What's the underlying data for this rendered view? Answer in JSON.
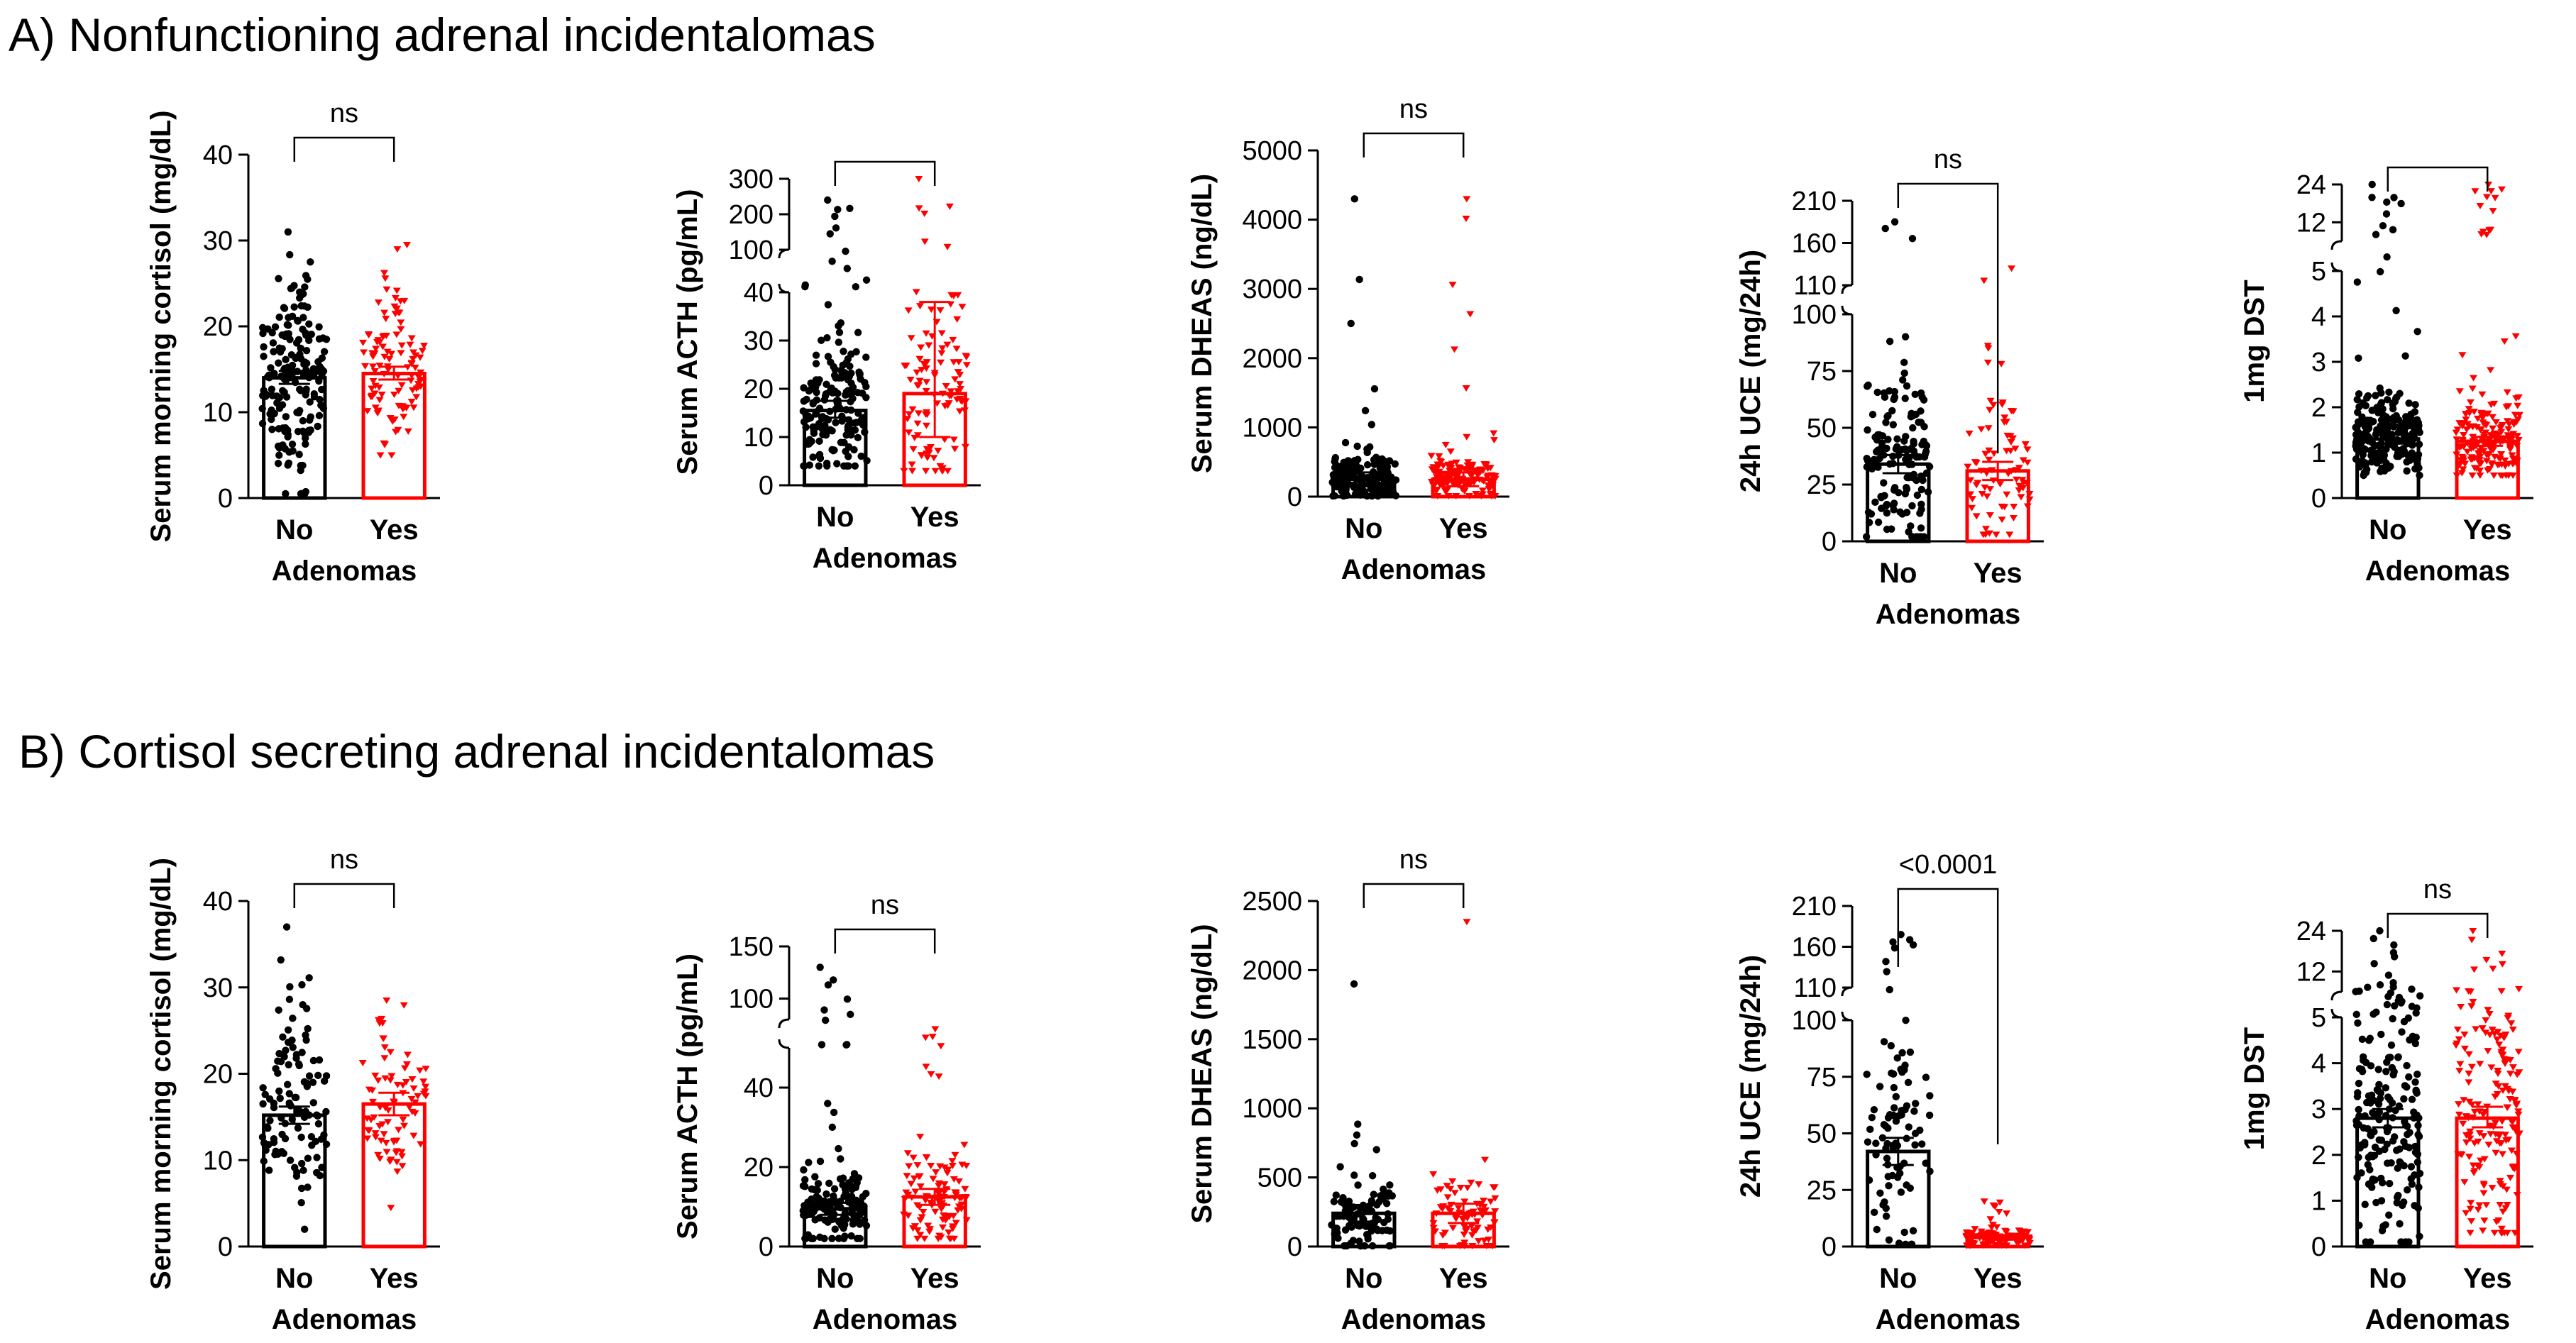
{
  "sections": [
    {
      "label": "A) Nonfunctioning adrenal incidentalomas"
    },
    {
      "label": "B) Cortisol secreting adrenal incidentalomas"
    }
  ],
  "colors": {
    "no": "#000000",
    "yes": "#ff0000"
  },
  "chart_data": [
    {
      "id": "A1",
      "type": "bar",
      "title": "",
      "xlabel": "Adenomas",
      "ylabel": "Serum morning cortisol (mg/dL)",
      "categories": [
        "No",
        "Yes"
      ],
      "means": [
        14,
        14.5
      ],
      "error_bars": [
        [
          13.3,
          14.8
        ],
        [
          13.8,
          15.3
        ]
      ],
      "point_range": [
        [
          0.5,
          31
        ],
        [
          5,
          29.5
        ]
      ],
      "n_points": [
        190,
        110
      ],
      "ylim": [
        0,
        40
      ],
      "ticks": [
        0,
        10,
        20,
        30,
        40
      ],
      "significance": "ns"
    },
    {
      "id": "A2",
      "type": "bar",
      "title": "",
      "xlabel": "Adenomas",
      "ylabel": "Serum ACTH (pg/mL)",
      "categories": [
        "No",
        "Yes"
      ],
      "means": [
        15.5,
        19
      ],
      "error_bars": [
        [
          14,
          17.5
        ],
        [
          10,
          38
        ]
      ],
      "point_range": [
        [
          4,
          240
        ],
        [
          3,
          300
        ]
      ],
      "n_points": [
        180,
        110
      ],
      "ylim_lower": [
        0,
        40
      ],
      "ticks_lower": [
        0,
        10,
        20,
        30,
        40
      ],
      "ylim_upper": [
        100,
        300
      ],
      "ticks_upper": [
        100,
        200,
        300
      ],
      "significance": ""
    },
    {
      "id": "A3",
      "type": "bar",
      "title": "",
      "xlabel": "Adenomas",
      "ylabel": "Serum DHEAS (ng/dL)",
      "categories": [
        "No",
        "Yes"
      ],
      "means": [
        250,
        250
      ],
      "error_bars": [
        [
          150,
          350
        ],
        [
          150,
          350
        ]
      ],
      "point_range": [
        [
          10,
          4300
        ],
        [
          10,
          4300
        ]
      ],
      "n_points": [
        170,
        150
      ],
      "ylim": [
        0,
        5000
      ],
      "ticks": [
        0,
        1000,
        2000,
        3000,
        4000,
        5000
      ],
      "significance": "ns"
    },
    {
      "id": "A4",
      "type": "bar",
      "title": "",
      "xlabel": "Adenomas",
      "ylabel": "24h UCE (mg/24h)",
      "categories": [
        "No",
        "Yes"
      ],
      "means": [
        34,
        31
      ],
      "error_bars": [
        [
          30,
          38
        ],
        [
          27,
          35
        ]
      ],
      "point_range": [
        [
          2,
          185
        ],
        [
          3,
          130
        ]
      ],
      "n_points": [
        150,
        80
      ],
      "ylim_lower": [
        0,
        100
      ],
      "ticks_lower": [
        0,
        25,
        50,
        75,
        100
      ],
      "ylim_upper": [
        110,
        210
      ],
      "ticks_upper": [
        110,
        160,
        210
      ],
      "significance": "ns"
    },
    {
      "id": "A5",
      "type": "bar",
      "title": "",
      "xlabel": "Adenomas",
      "ylabel": "1mg DST",
      "categories": [
        "No",
        "Yes"
      ],
      "means": [
        1.3,
        1.25
      ],
      "error_bars": [
        [
          1.2,
          1.4
        ],
        [
          1.15,
          1.35
        ]
      ],
      "point_range": [
        [
          0.5,
          24
        ],
        [
          0.5,
          24
        ]
      ],
      "n_points": [
        230,
        200
      ],
      "ylim_lower": [
        0,
        5
      ],
      "ticks_lower": [
        0,
        1,
        2,
        3,
        4,
        5
      ],
      "ylim_upper": [
        6,
        24
      ],
      "ticks_upper": [
        12,
        24
      ],
      "significance": ""
    },
    {
      "id": "B1",
      "type": "bar",
      "title": "",
      "xlabel": "Adenomas",
      "ylabel": "Serum morning cortisol (mg/dL)",
      "categories": [
        "No",
        "Yes"
      ],
      "means": [
        15.2,
        16.5
      ],
      "error_bars": [
        [
          14.2,
          16.2
        ],
        [
          15.2,
          17.8
        ]
      ],
      "point_range": [
        [
          2,
          37
        ],
        [
          4.5,
          28.5
        ]
      ],
      "n_points": [
        110,
        80
      ],
      "ylim": [
        0,
        40
      ],
      "ticks": [
        0,
        10,
        20,
        30,
        40
      ],
      "significance": "ns"
    },
    {
      "id": "B2",
      "type": "bar",
      "title": "",
      "xlabel": "Adenomas",
      "ylabel": "Serum ACTH (pg/mL)",
      "categories": [
        "No",
        "Yes"
      ],
      "means": [
        9.5,
        12.5
      ],
      "error_bars": [
        [
          8,
          11
        ],
        [
          10.5,
          14.5
        ]
      ],
      "point_range": [
        [
          2,
          130
        ],
        [
          2,
          70
        ]
      ],
      "n_points": [
        150,
        110
      ],
      "ylim_lower": [
        0,
        50
      ],
      "ticks_lower": [
        0,
        20,
        40
      ],
      "ylim_upper": [
        80,
        150
      ],
      "ticks_upper": [
        100,
        150
      ],
      "significance": "ns"
    },
    {
      "id": "B3",
      "type": "bar",
      "title": "",
      "xlabel": "Adenomas",
      "ylabel": "Serum DHEAS (ng/dL)",
      "categories": [
        "No",
        "Yes"
      ],
      "means": [
        240,
        240
      ],
      "error_bars": [
        [
          180,
          300
        ],
        [
          170,
          310
        ]
      ],
      "point_range": [
        [
          5,
          1900
        ],
        [
          5,
          2350
        ]
      ],
      "n_points": [
        90,
        80
      ],
      "ylim": [
        0,
        2500
      ],
      "ticks": [
        0,
        500,
        1000,
        1500,
        2000,
        2500
      ],
      "significance": "ns"
    },
    {
      "id": "B4",
      "type": "bar",
      "title": "",
      "xlabel": "Adenomas",
      "ylabel": "24h UCE (mg/24h)",
      "categories": [
        "No",
        "Yes"
      ],
      "means": [
        42,
        4
      ],
      "error_bars": [
        [
          36,
          48
        ],
        [
          3,
          5
        ]
      ],
      "point_range": [
        [
          1,
          175
        ],
        [
          0.5,
          20
        ]
      ],
      "n_points": [
        90,
        110
      ],
      "ylim_lower": [
        0,
        100
      ],
      "ticks_lower": [
        0,
        25,
        50,
        75,
        100
      ],
      "ylim_upper": [
        110,
        210
      ],
      "ticks_upper": [
        110,
        160,
        210
      ],
      "significance": "<0.0001"
    },
    {
      "id": "B5",
      "type": "bar",
      "title": "",
      "xlabel": "Adenomas",
      "ylabel": "1mg DST",
      "categories": [
        "No",
        "Yes"
      ],
      "means": [
        2.8,
        2.8
      ],
      "error_bars": [
        [
          2.6,
          3.0
        ],
        [
          2.6,
          3.05
        ]
      ],
      "point_range": [
        [
          0.1,
          24
        ],
        [
          0.3,
          24
        ]
      ],
      "n_points": [
        200,
        180
      ],
      "ylim_lower": [
        0,
        5
      ],
      "ticks_lower": [
        0,
        1,
        2,
        3,
        4,
        5
      ],
      "ylim_upper": [
        6,
        24
      ],
      "ticks_upper": [
        12,
        24
      ],
      "significance": "ns"
    }
  ]
}
